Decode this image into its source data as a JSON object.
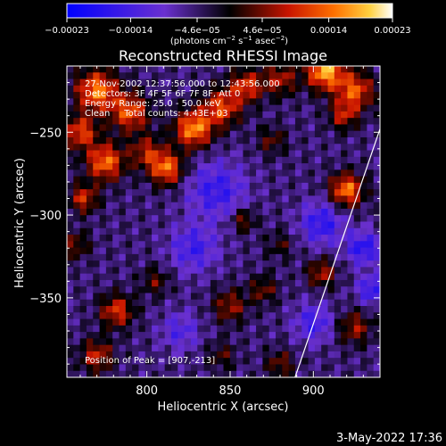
{
  "chart_data": {
    "type": "heatmap",
    "title": "Reconstructed RHESSI Image",
    "xlabel": "Heliocentric X (arcsec)",
    "ylabel": "Heliocentric Y (arcsec)",
    "xlim": [
      752,
      940
    ],
    "ylim": [
      -398,
      -210
    ],
    "x_ticks": [
      {
        "value": 800,
        "label": "800"
      },
      {
        "value": 850,
        "label": "850"
      },
      {
        "value": 900,
        "label": "900"
      }
    ],
    "y_ticks": [
      {
        "value": -250,
        "label": "−250"
      },
      {
        "value": -300,
        "label": "−300"
      },
      {
        "value": -350,
        "label": "−350"
      }
    ],
    "colorbar": {
      "range": [
        -0.00023,
        0.00023
      ],
      "units_main": "(photons cm",
      "units_exp1": "−2",
      "units_mid": " s",
      "units_exp2": "−1",
      "units_tail": " asec",
      "units_exp3": "−2",
      "units_close": ")",
      "ticks": [
        {
          "value": -0.00023,
          "label": "−0.00023"
        },
        {
          "value": -0.00014,
          "label": "−0.00014"
        },
        {
          "value": -4.6e-05,
          "label": "−4.6e−05"
        },
        {
          "value": 4.6e-05,
          "label": "4.6e−05"
        },
        {
          "value": 0.00014,
          "label": "0.00014"
        },
        {
          "value": 0.00023,
          "label": "0.00023"
        }
      ]
    },
    "annotations": [
      "27-Nov-2002 12:37:56.000 to 12:43:56.000",
      "Detectors: 3F 4F 5F 6F 7F 8F, Att 0",
      "Energy Range: 25.0 - 50.0 keV",
      "Clean     Total counts: 4.43E+03"
    ],
    "peak_label": "Position of Peak = [907,-213]",
    "limb_line": [
      {
        "x": 889,
        "y": -398
      },
      {
        "x": 940,
        "y": -248
      }
    ],
    "hotspots": [
      {
        "x": 770,
        "y": -225,
        "a": 0.0002,
        "s": 9
      },
      {
        "x": 790,
        "y": -238,
        "a": 0.00017,
        "s": 8
      },
      {
        "x": 760,
        "y": -250,
        "a": 0.00016,
        "s": 7
      },
      {
        "x": 775,
        "y": -268,
        "a": 0.00019,
        "s": 8
      },
      {
        "x": 762,
        "y": -290,
        "a": 0.00014,
        "s": 6
      },
      {
        "x": 800,
        "y": -262,
        "a": 0.00012,
        "s": 7
      },
      {
        "x": 812,
        "y": -272,
        "a": 0.00019,
        "s": 7
      },
      {
        "x": 828,
        "y": -248,
        "a": 0.00021,
        "s": 8
      },
      {
        "x": 845,
        "y": -235,
        "a": 0.00016,
        "s": 8
      },
      {
        "x": 860,
        "y": -222,
        "a": 0.00015,
        "s": 7
      },
      {
        "x": 880,
        "y": -218,
        "a": 0.00012,
        "s": 7
      },
      {
        "x": 907,
        "y": -213,
        "a": 0.00023,
        "s": 8
      },
      {
        "x": 925,
        "y": -225,
        "a": 0.00017,
        "s": 8
      },
      {
        "x": 918,
        "y": -240,
        "a": 0.00012,
        "s": 6
      },
      {
        "x": 920,
        "y": -285,
        "a": 0.0002,
        "s": 7
      },
      {
        "x": 875,
        "y": -255,
        "a": 8e-05,
        "s": 6
      },
      {
        "x": 858,
        "y": -303,
        "a": 0.0001,
        "s": 5
      },
      {
        "x": 880,
        "y": -318,
        "a": 6e-05,
        "s": 6
      },
      {
        "x": 757,
        "y": -318,
        "a": 9e-05,
        "s": 6
      },
      {
        "x": 782,
        "y": -358,
        "a": 0.00015,
        "s": 7
      },
      {
        "x": 770,
        "y": -385,
        "a": 0.00013,
        "s": 7
      },
      {
        "x": 805,
        "y": -340,
        "a": 8e-05,
        "s": 6
      },
      {
        "x": 850,
        "y": -355,
        "a": 0.00011,
        "s": 7
      },
      {
        "x": 870,
        "y": -345,
        "a": 9e-05,
        "s": 6
      },
      {
        "x": 880,
        "y": -390,
        "a": 9e-05,
        "s": 6
      },
      {
        "x": 905,
        "y": -335,
        "a": 0.00012,
        "s": 6
      },
      {
        "x": 925,
        "y": -368,
        "a": 0.00011,
        "s": 7
      },
      {
        "x": 845,
        "y": -385,
        "a": 7e-05,
        "s": 6
      }
    ],
    "coldspots": [
      {
        "x": 842,
        "y": -285,
        "a": -0.00011,
        "s": 12
      },
      {
        "x": 828,
        "y": -320,
        "a": -0.0001,
        "s": 10
      },
      {
        "x": 905,
        "y": -305,
        "a": -0.00012,
        "s": 9
      },
      {
        "x": 930,
        "y": -320,
        "a": -0.00013,
        "s": 7
      },
      {
        "x": 820,
        "y": -370,
        "a": -8e-05,
        "s": 8
      },
      {
        "x": 900,
        "y": -365,
        "a": -0.0001,
        "s": 8
      },
      {
        "x": 935,
        "y": -345,
        "a": -0.00012,
        "s": 6
      }
    ]
  },
  "timestamp": "3-May-2022 17:36"
}
